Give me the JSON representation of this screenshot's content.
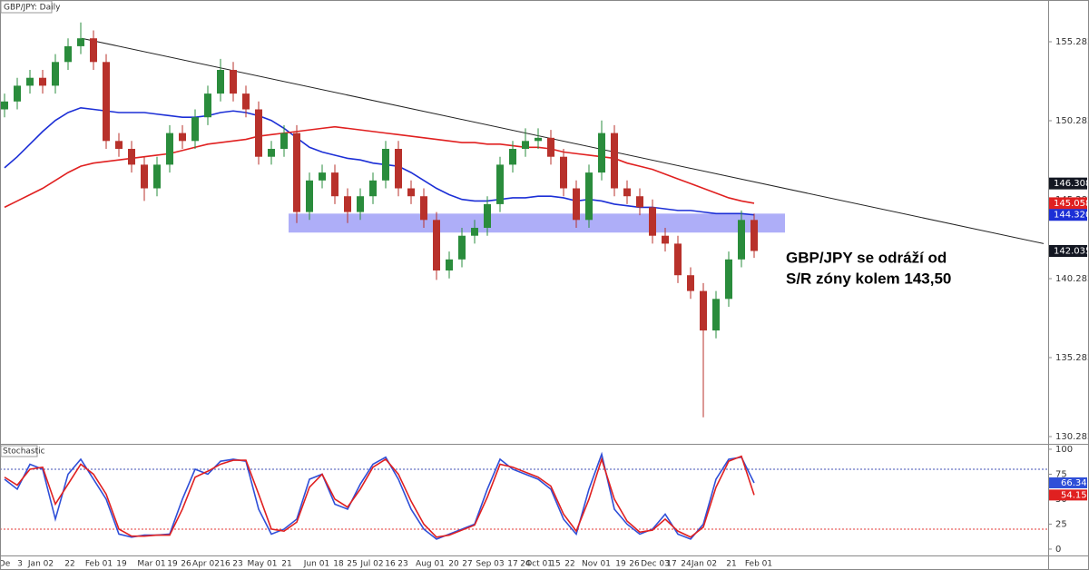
{
  "chart_data": [
    {
      "type": "candlestick",
      "title": "GBP/JPY: Daily",
      "annotation": [
        "GBP/JPY se odráží od",
        "S/R zóny kolem 143,50"
      ],
      "x_labels": [
        "De",
        "3",
        "Jan 02",
        "22",
        "Feb 01",
        "19",
        "Mar 01",
        "19",
        "26",
        "Apr 02",
        "16",
        "23",
        "May 01",
        "21",
        "Jun 01",
        "18",
        "25",
        "Jul 02",
        "16",
        "23",
        "Aug 01",
        "20",
        "27",
        "Sep 03",
        "17",
        "24",
        "Oct 01",
        "15",
        "22",
        "Nov 01",
        "19",
        "26",
        "Dec 03",
        "17",
        "24",
        "Jan 02",
        "21",
        "Feb 01"
      ],
      "open": [
        151,
        151.5,
        152.5,
        153,
        152.5,
        154,
        155,
        155.5,
        154,
        149,
        148.5,
        147.5,
        146,
        147.5,
        149.5,
        149,
        150.5,
        152,
        153.5,
        152,
        151,
        148,
        148.5,
        149.5,
        144.5,
        146.5,
        147,
        145.5,
        144.5,
        145.5,
        146.5,
        148.5,
        146,
        145.5,
        144,
        140.8,
        141.5,
        143,
        143.5,
        145,
        147.5,
        148.5,
        149,
        149.2,
        148,
        146,
        144,
        147,
        149.5,
        146,
        145.5,
        144.8,
        143,
        142.5,
        140.5,
        139.5,
        137,
        139,
        141.5,
        144
      ],
      "high": [
        152,
        153,
        153.5,
        153.5,
        154.5,
        155.5,
        156.5,
        156,
        154.5,
        149.5,
        149,
        148,
        148,
        150,
        150,
        151,
        152.5,
        154.2,
        154,
        152.5,
        151.5,
        149,
        150,
        150,
        147,
        147.5,
        147.5,
        146,
        146,
        147,
        149,
        149,
        146.5,
        146,
        144.5,
        142,
        143.5,
        144,
        145.5,
        148,
        149,
        149.8,
        149.8,
        149.7,
        148.5,
        146.5,
        147.5,
        150.3,
        150,
        146.5,
        146,
        145.3,
        143.5,
        143,
        141,
        140,
        139.5,
        142,
        144.6,
        144.4
      ],
      "low": [
        150.5,
        151,
        152,
        152,
        152,
        153.5,
        154.5,
        153.5,
        148.5,
        148,
        147,
        145.2,
        145.5,
        147,
        148.5,
        148.5,
        150,
        151.5,
        151.5,
        150.5,
        147.5,
        147.5,
        148,
        143.8,
        144,
        146,
        145,
        143.8,
        144,
        145,
        146,
        145.5,
        145,
        143.5,
        140.2,
        140.3,
        141,
        142.5,
        143,
        144.5,
        147,
        148,
        148.5,
        147.5,
        145.5,
        143.5,
        143.5,
        146.5,
        145.5,
        145,
        144.3,
        142.5,
        142,
        140,
        139,
        131.5,
        136.5,
        138.5,
        141,
        141.6
      ],
      "close": [
        151.5,
        152.5,
        153,
        152.5,
        154,
        155,
        155.5,
        154,
        149,
        148.5,
        147.5,
        146,
        147.5,
        149.5,
        149,
        150.5,
        152,
        153.5,
        152,
        151,
        148,
        148.5,
        149.5,
        144.5,
        146.5,
        147,
        145.5,
        144.5,
        145.5,
        146.5,
        148.5,
        146,
        145.5,
        144,
        140.8,
        141.5,
        143,
        143.5,
        145,
        147.5,
        148.5,
        149,
        149.2,
        148,
        146,
        144,
        147,
        149.5,
        146,
        145.5,
        144.8,
        143,
        142.5,
        140.5,
        139.5,
        137,
        139,
        141.5,
        144,
        142.035
      ],
      "series": [
        {
          "color": "#1c2fd6",
          "values": [
            147.3,
            148,
            148.8,
            149.6,
            150.3,
            150.8,
            151.1,
            151,
            150.9,
            150.8,
            150.8,
            150.8,
            150.7,
            150.6,
            150.5,
            150.5,
            150.6,
            150.8,
            150.9,
            150.8,
            150.6,
            150.3,
            149.8,
            149.2,
            148.6,
            148.3,
            148.1,
            147.9,
            147.8,
            147.6,
            147.5,
            147.4,
            147,
            146.5,
            146,
            145.6,
            145.3,
            145.2,
            145.2,
            145.3,
            145.4,
            145.4,
            145.5,
            145.5,
            145.4,
            145.2,
            145.3,
            145.2,
            145,
            144.9,
            144.8,
            144.8,
            144.7,
            144.6,
            144.6,
            144.5,
            144.4,
            144.4,
            144.4,
            144.32
          ]
        },
        {
          "color": "#e02020",
          "values": [
            144.8,
            145.2,
            145.6,
            146,
            146.5,
            147,
            147.4,
            147.6,
            147.7,
            147.8,
            147.9,
            148,
            148.1,
            148.2,
            148.4,
            148.6,
            148.8,
            148.9,
            149,
            149.1,
            149.3,
            149.4,
            149.5,
            149.6,
            149.7,
            149.8,
            149.9,
            149.8,
            149.7,
            149.6,
            149.5,
            149.4,
            149.3,
            149.2,
            149.1,
            149,
            148.9,
            148.9,
            148.8,
            148.8,
            148.7,
            148.6,
            148.6,
            148.5,
            148.3,
            148.2,
            148.1,
            148,
            147.9,
            147.6,
            147.4,
            147.2,
            146.9,
            146.6,
            146.3,
            146,
            145.7,
            145.4,
            145.2,
            145.058
          ]
        }
      ],
      "candle_colors": {
        "up": "#2a8c3c",
        "down": "#b8312b"
      },
      "zone": [
        143.2,
        144.4
      ],
      "zone_color": "#8c8cf5",
      "trendline": [
        155.5,
        142.5
      ],
      "ylim": [
        129.88,
        157.926
      ],
      "yticks": [
        130.282,
        135.282,
        140.282,
        145.282,
        150.282,
        155.282
      ],
      "price_tags": [
        {
          "value": 146.308,
          "label": "146.308",
          "color": "#131722"
        },
        {
          "value": 145.058,
          "label": "145.058",
          "color": "#e02020"
        },
        {
          "value": 144.32,
          "label": "144.320",
          "color": "#1c2fd6"
        },
        {
          "value": 142.035,
          "label": "142.035",
          "color": "#131722"
        }
      ]
    },
    {
      "type": "line",
      "title": "Stochastic",
      "series": [
        {
          "color": "#2f4fd8",
          "values": [
            70,
            60,
            85,
            80,
            30,
            75,
            90,
            70,
            50,
            15,
            12,
            14,
            14,
            15,
            50,
            80,
            75,
            88,
            90,
            88,
            40,
            15,
            20,
            30,
            70,
            75,
            45,
            40,
            65,
            85,
            92,
            70,
            40,
            20,
            10,
            15,
            20,
            25,
            60,
            90,
            80,
            75,
            70,
            60,
            30,
            15,
            60,
            95,
            40,
            25,
            15,
            20,
            35,
            15,
            10,
            25,
            70,
            90,
            92,
            66.34
          ]
        },
        {
          "color": "#e02020",
          "values": [
            72,
            64,
            80,
            82,
            45,
            65,
            85,
            75,
            55,
            20,
            13,
            13,
            14,
            14,
            40,
            72,
            78,
            85,
            89,
            89,
            55,
            20,
            18,
            27,
            62,
            75,
            50,
            42,
            60,
            82,
            90,
            75,
            48,
            25,
            12,
            14,
            19,
            24,
            52,
            85,
            82,
            77,
            72,
            63,
            35,
            18,
            50,
            90,
            50,
            28,
            17,
            19,
            30,
            18,
            12,
            22,
            62,
            88,
            93,
            54.15
          ]
        }
      ],
      "levels": [
        {
          "value": 80,
          "color": "#3f51b5"
        },
        {
          "value": 20,
          "color": "#e53935"
        }
      ],
      "ylim": [
        -6.4,
        104.5
      ],
      "yticks": [
        0,
        25,
        50,
        75,
        100
      ]
    }
  ]
}
